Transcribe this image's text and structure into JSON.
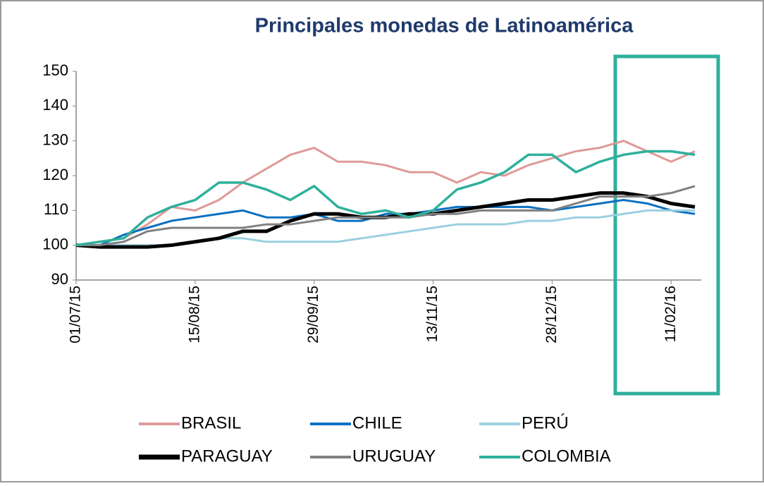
{
  "chart_data": {
    "type": "line",
    "title": "Principales monedas de Latinoamérica",
    "categories": [
      "01/07/15",
      null,
      null,
      null,
      null,
      "15/08/15",
      null,
      null,
      null,
      null,
      "29/09/15",
      null,
      null,
      null,
      null,
      "13/11/15",
      null,
      null,
      null,
      null,
      "28/12/15",
      null,
      null,
      null,
      null,
      "11/02/16",
      null
    ],
    "series": [
      {
        "name": "BRASIL",
        "color": "#dd9a98",
        "values": [
          100,
          101,
          102,
          106,
          111,
          110,
          113,
          118,
          122,
          126,
          128,
          124,
          124,
          123,
          121,
          121,
          118,
          121,
          120,
          123,
          125,
          127,
          128,
          130,
          127,
          124,
          127
        ]
      },
      {
        "name": "CHILE",
        "color": "#0a70c0",
        "values": [
          100,
          100,
          103,
          105,
          107,
          108,
          109,
          110,
          108,
          108,
          109,
          107,
          107,
          109,
          109,
          110,
          111,
          111,
          111,
          111,
          110,
          111,
          112,
          113,
          112,
          110,
          109
        ]
      },
      {
        "name": "PERÚ",
        "color": "#9ad0e0",
        "values": [
          100,
          100,
          100,
          100,
          100,
          101,
          102,
          102,
          101,
          101,
          101,
          101,
          102,
          103,
          104,
          105,
          106,
          106,
          106,
          107,
          107,
          108,
          108,
          109,
          110,
          110,
          110
        ]
      },
      {
        "name": "PARAGUAY",
        "color": "#000000",
        "values": [
          100,
          99.5,
          99.5,
          99.5,
          100,
          101,
          102,
          104,
          104,
          107,
          109,
          109,
          108,
          108,
          109,
          109,
          110,
          111,
          112,
          113,
          113,
          114,
          115,
          115,
          114,
          112,
          111
        ]
      },
      {
        "name": "URUGUAY",
        "color": "#808080",
        "values": [
          100,
          100,
          101,
          104,
          105,
          105,
          105,
          105,
          106,
          106,
          107,
          108,
          108,
          108,
          108,
          109,
          109,
          110,
          110,
          110,
          110,
          112,
          114,
          114,
          114,
          115,
          117
        ]
      },
      {
        "name": "COLOMBIA",
        "color": "#2fb09c",
        "values": [
          100,
          101,
          102,
          108,
          111,
          113,
          118,
          118,
          116,
          113,
          117,
          111,
          109,
          110,
          108,
          110,
          116,
          118,
          121,
          126,
          126,
          121,
          124,
          126,
          127,
          127,
          126
        ]
      }
    ],
    "ylim": [
      90,
      150
    ],
    "yticks": [
      90,
      100,
      110,
      120,
      130,
      140,
      150
    ]
  }
}
